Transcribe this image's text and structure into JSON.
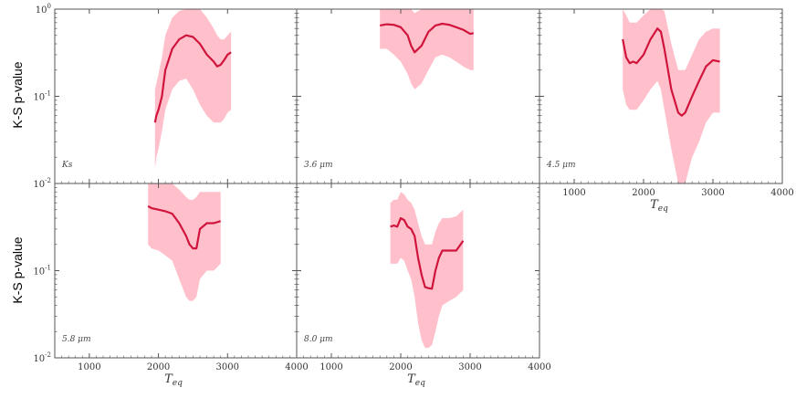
{
  "figure": {
    "ylabel": "K-S p-value",
    "xlabel": "T_eq",
    "xlabel_main": "T",
    "xlabel_sub": "eq"
  },
  "colors": {
    "line": "#d0143c",
    "band": "#ffc0cb",
    "frame": "#555555"
  },
  "chart_data": [
    {
      "type": "line",
      "band_label": "Ks",
      "x": [
        1950,
        1970,
        2000,
        2050,
        2100,
        2200,
        2300,
        2400,
        2500,
        2600,
        2700,
        2800,
        2850,
        2900,
        2950,
        3000,
        3050
      ],
      "y": [
        0.05,
        0.06,
        0.07,
        0.1,
        0.2,
        0.35,
        0.45,
        0.5,
        0.48,
        0.4,
        0.3,
        0.25,
        0.22,
        0.23,
        0.26,
        0.3,
        0.32
      ],
      "y_lower": [
        0.015,
        0.02,
        0.025,
        0.04,
        0.07,
        0.12,
        0.15,
        0.16,
        0.12,
        0.08,
        0.06,
        0.05,
        0.05,
        0.05,
        0.055,
        0.065,
        0.07
      ],
      "y_upper": [
        0.12,
        0.14,
        0.18,
        0.28,
        0.5,
        0.8,
        0.95,
        1.0,
        1.0,
        1.0,
        0.8,
        0.6,
        0.5,
        0.45,
        0.45,
        0.5,
        0.55
      ],
      "xlim": [
        500,
        4000
      ],
      "ylim": [
        0.01,
        1.0
      ],
      "yscale": "log",
      "xticks": [
        1000,
        2000,
        3000,
        4000
      ],
      "yticks": [
        {
          "value": 1.0,
          "label": "10^0"
        },
        {
          "value": 0.1,
          "label": "10^-1"
        },
        {
          "value": 0.01,
          "label": "10^-2"
        }
      ]
    },
    {
      "type": "line",
      "band_label": "3.6 μm",
      "x": [
        1700,
        1800,
        1900,
        2000,
        2100,
        2150,
        2200,
        2300,
        2400,
        2500,
        2600,
        2700,
        2800,
        2900,
        3000,
        3050
      ],
      "y": [
        0.65,
        0.67,
        0.66,
        0.62,
        0.5,
        0.38,
        0.32,
        0.38,
        0.55,
        0.65,
        0.68,
        0.66,
        0.62,
        0.58,
        0.52,
        0.53
      ],
      "y_lower": [
        0.35,
        0.35,
        0.3,
        0.25,
        0.18,
        0.14,
        0.12,
        0.14,
        0.2,
        0.28,
        0.3,
        0.28,
        0.25,
        0.22,
        0.2,
        0.2
      ],
      "y_upper": [
        1.0,
        1.0,
        1.0,
        1.0,
        1.0,
        1.0,
        0.9,
        1.0,
        1.0,
        1.0,
        1.0,
        1.0,
        1.0,
        1.0,
        1.0,
        1.0
      ],
      "xlim": [
        500,
        4000
      ],
      "ylim": [
        0.01,
        1.0
      ],
      "yscale": "log",
      "xticks": [
        1000,
        2000,
        3000,
        4000
      ],
      "yticks": [
        {
          "value": 1.0,
          "label": "10^0"
        },
        {
          "value": 0.1,
          "label": "10^-1"
        },
        {
          "value": 0.01,
          "label": "10^-2"
        }
      ]
    },
    {
      "type": "line",
      "band_label": "4.5 μm",
      "x": [
        1700,
        1750,
        1800,
        1850,
        1900,
        2000,
        2100,
        2200,
        2250,
        2300,
        2400,
        2500,
        2550,
        2600,
        2700,
        2800,
        2900,
        3000,
        3100
      ],
      "y": [
        0.45,
        0.28,
        0.24,
        0.25,
        0.24,
        0.3,
        0.45,
        0.6,
        0.55,
        0.35,
        0.12,
        0.065,
        0.06,
        0.065,
        0.1,
        0.15,
        0.22,
        0.26,
        0.25
      ],
      "y_lower": [
        0.12,
        0.08,
        0.07,
        0.07,
        0.07,
        0.09,
        0.12,
        0.15,
        0.12,
        0.07,
        0.025,
        0.01,
        0.01,
        0.01,
        0.02,
        0.03,
        0.05,
        0.065,
        0.065
      ],
      "y_upper": [
        1.0,
        0.85,
        0.7,
        0.7,
        0.7,
        0.85,
        1.0,
        1.0,
        1.0,
        0.95,
        0.4,
        0.2,
        0.2,
        0.2,
        0.3,
        0.45,
        0.55,
        0.6,
        0.6
      ],
      "xlim": [
        500,
        4000
      ],
      "ylim": [
        0.01,
        1.0
      ],
      "yscale": "log",
      "xticks": [
        1000,
        2000,
        3000,
        4000
      ],
      "yticks": [
        {
          "value": 1.0,
          "label": "10^0"
        },
        {
          "value": 0.1,
          "label": "10^-1"
        },
        {
          "value": 0.01,
          "label": "10^-2"
        }
      ]
    },
    {
      "type": "line",
      "band_label": "5.8 μm",
      "x": [
        1850,
        1900,
        2000,
        2100,
        2200,
        2300,
        2400,
        2450,
        2500,
        2550,
        2600,
        2700,
        2800,
        2900
      ],
      "y": [
        0.55,
        0.52,
        0.5,
        0.48,
        0.45,
        0.35,
        0.25,
        0.2,
        0.18,
        0.18,
        0.3,
        0.35,
        0.35,
        0.37
      ],
      "y_lower": [
        0.2,
        0.18,
        0.17,
        0.15,
        0.13,
        0.08,
        0.05,
        0.045,
        0.045,
        0.05,
        0.08,
        0.1,
        0.1,
        0.12
      ],
      "y_upper": [
        1.0,
        1.0,
        1.0,
        1.0,
        1.0,
        0.85,
        0.7,
        0.65,
        0.65,
        0.7,
        0.8,
        0.8,
        0.8,
        0.8
      ],
      "xlim": [
        500,
        4000
      ],
      "ylim": [
        0.01,
        1.0
      ],
      "yscale": "log",
      "xticks": [
        1000,
        2000,
        3000,
        4000
      ],
      "yticks": [
        {
          "value": 1.0,
          "label": "10^0"
        },
        {
          "value": 0.1,
          "label": "10^-1"
        },
        {
          "value": 0.01,
          "label": "10^-2"
        }
      ]
    },
    {
      "type": "line",
      "band_label": "8.0 μm",
      "x": [
        1850,
        1900,
        1950,
        2000,
        2050,
        2100,
        2150,
        2200,
        2250,
        2300,
        2350,
        2400,
        2450,
        2500,
        2550,
        2600,
        2700,
        2800,
        2900
      ],
      "y": [
        0.32,
        0.33,
        0.32,
        0.4,
        0.38,
        0.32,
        0.3,
        0.25,
        0.14,
        0.09,
        0.065,
        0.063,
        0.062,
        0.1,
        0.14,
        0.17,
        0.17,
        0.17,
        0.22
      ],
      "y_lower": [
        0.12,
        0.12,
        0.12,
        0.14,
        0.13,
        0.1,
        0.08,
        0.05,
        0.025,
        0.016,
        0.013,
        0.013,
        0.014,
        0.02,
        0.03,
        0.04,
        0.045,
        0.05,
        0.06
      ],
      "y_upper": [
        0.6,
        0.65,
        0.65,
        0.8,
        0.75,
        0.65,
        0.6,
        0.5,
        0.35,
        0.25,
        0.2,
        0.2,
        0.2,
        0.28,
        0.35,
        0.4,
        0.4,
        0.42,
        0.5
      ],
      "xlim": [
        500,
        4000
      ],
      "ylim": [
        0.01,
        1.0
      ],
      "yscale": "log",
      "xticks": [
        1000,
        2000,
        3000,
        4000
      ],
      "yticks": [
        {
          "value": 1.0,
          "label": "10^0"
        },
        {
          "value": 0.1,
          "label": "10^-1"
        },
        {
          "value": 0.01,
          "label": "10^-2"
        }
      ]
    }
  ]
}
